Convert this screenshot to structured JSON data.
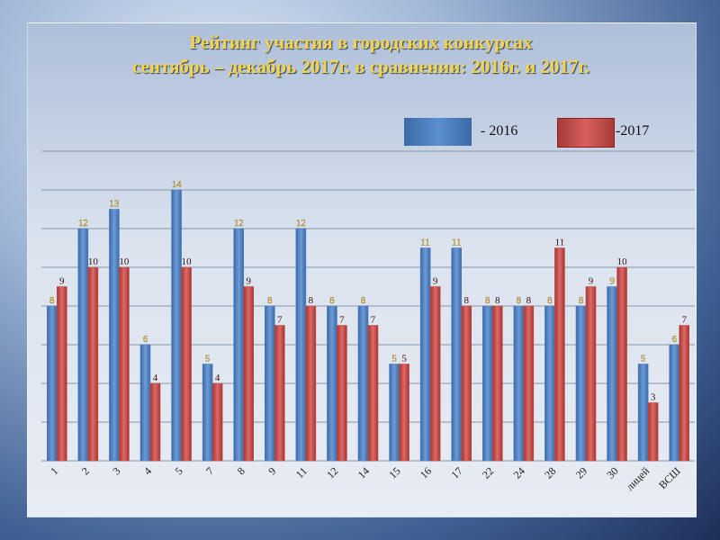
{
  "title": {
    "line1": "Рейтинг участия в городских конкурсах",
    "line2": "сентябрь – декабрь 2017г. в сравнении: 2016г. и 2017г."
  },
  "colors": {
    "series2016": "#4f81bd",
    "series2017": "#c0504d"
  },
  "legend": {
    "label2016": "- 2016",
    "label2017": "-2017"
  },
  "chart_data": {
    "type": "bar",
    "categories": [
      "1",
      "2",
      "3",
      "4",
      "5",
      "7",
      "8",
      "9",
      "11",
      "12",
      "14",
      "15",
      "16",
      "17",
      "22",
      "24",
      "28",
      "29",
      "30",
      "лицей",
      "ВСШ"
    ],
    "series": [
      {
        "name": "- 2016",
        "values": [
          8,
          12,
          13,
          6,
          14,
          5,
          12,
          8,
          12,
          8,
          8,
          5,
          11,
          11,
          8,
          8,
          8,
          8,
          9,
          5,
          6
        ]
      },
      {
        "name": "-2017",
        "values": [
          9,
          10,
          10,
          4,
          10,
          4,
          9,
          7,
          8,
          7,
          7,
          5,
          9,
          8,
          8,
          8,
          11,
          9,
          10,
          3,
          7
        ]
      }
    ],
    "ylim": [
      0,
      16
    ],
    "grid": true,
    "legend_position": "top-right"
  }
}
